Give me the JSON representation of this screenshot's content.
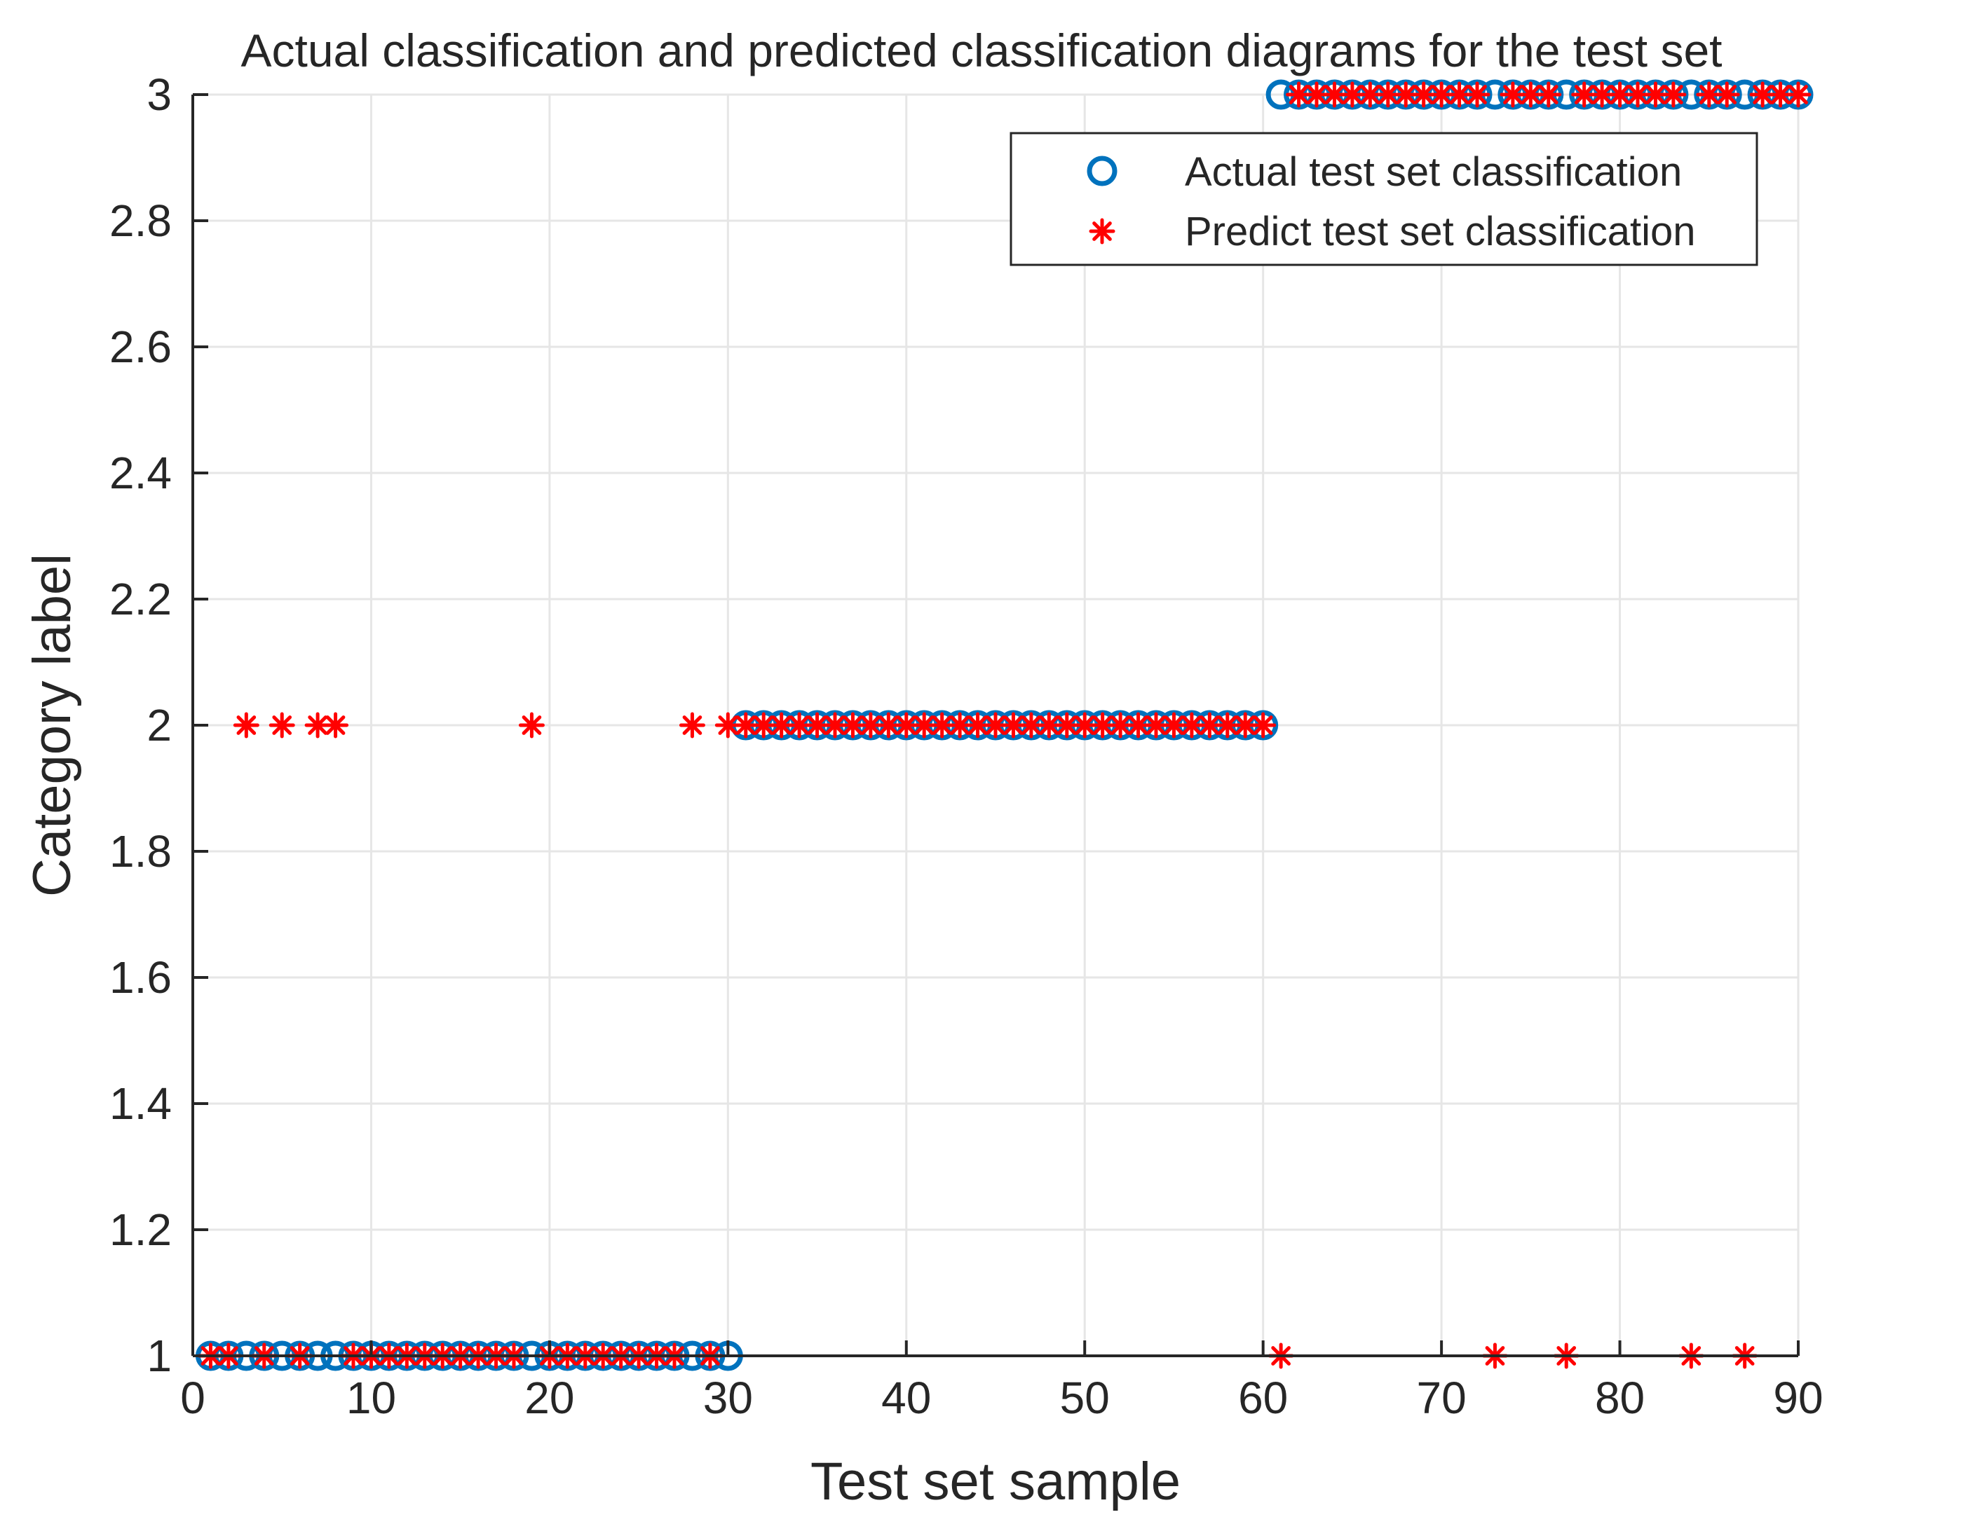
{
  "chart_data": {
    "type": "scatter",
    "title": "Actual classification and predicted classification diagrams for the test set",
    "xlabel": "Test set sample",
    "ylabel": "Category label",
    "xlim": [
      0,
      90
    ],
    "ylim": [
      1,
      3
    ],
    "xticks": [
      0,
      10,
      20,
      30,
      40,
      50,
      60,
      70,
      80,
      90
    ],
    "xtick_labels": [
      "0",
      "10",
      "20",
      "30",
      "40",
      "50",
      "60",
      "70",
      "80",
      "90"
    ],
    "yticks": [
      1,
      1.2,
      1.4,
      1.6,
      1.8,
      2,
      2.2,
      2.4,
      2.6,
      2.8,
      3
    ],
    "ytick_labels": [
      "1",
      "1.2",
      "1.4",
      "1.6",
      "1.8",
      "2",
      "2.2",
      "2.4",
      "2.6",
      "2.8",
      "3"
    ],
    "grid": true,
    "legend_position": "top-right",
    "series": [
      {
        "name": "Actual test set classification",
        "marker": "circle",
        "color": "#0072BD",
        "x": [
          1,
          2,
          3,
          4,
          5,
          6,
          7,
          8,
          9,
          10,
          11,
          12,
          13,
          14,
          15,
          16,
          17,
          18,
          19,
          20,
          21,
          22,
          23,
          24,
          25,
          26,
          27,
          28,
          29,
          30,
          31,
          32,
          33,
          34,
          35,
          36,
          37,
          38,
          39,
          40,
          41,
          42,
          43,
          44,
          45,
          46,
          47,
          48,
          49,
          50,
          51,
          52,
          53,
          54,
          55,
          56,
          57,
          58,
          59,
          60,
          61,
          62,
          63,
          64,
          65,
          66,
          67,
          68,
          69,
          70,
          71,
          72,
          73,
          74,
          75,
          76,
          77,
          78,
          79,
          80,
          81,
          82,
          83,
          84,
          85,
          86,
          87,
          88,
          89,
          90
        ],
        "y": [
          1,
          1,
          1,
          1,
          1,
          1,
          1,
          1,
          1,
          1,
          1,
          1,
          1,
          1,
          1,
          1,
          1,
          1,
          1,
          1,
          1,
          1,
          1,
          1,
          1,
          1,
          1,
          1,
          1,
          1,
          2,
          2,
          2,
          2,
          2,
          2,
          2,
          2,
          2,
          2,
          2,
          2,
          2,
          2,
          2,
          2,
          2,
          2,
          2,
          2,
          2,
          2,
          2,
          2,
          2,
          2,
          2,
          2,
          2,
          2,
          3,
          3,
          3,
          3,
          3,
          3,
          3,
          3,
          3,
          3,
          3,
          3,
          3,
          3,
          3,
          3,
          3,
          3,
          3,
          3,
          3,
          3,
          3,
          3,
          3,
          3,
          3,
          3,
          3,
          3
        ]
      },
      {
        "name": "Predict test set classification",
        "marker": "asterisk",
        "color": "#FF0000",
        "x": [
          1,
          2,
          3,
          4,
          5,
          6,
          7,
          8,
          9,
          10,
          11,
          12,
          13,
          14,
          15,
          16,
          17,
          18,
          19,
          20,
          21,
          22,
          23,
          24,
          25,
          26,
          27,
          28,
          29,
          30,
          31,
          32,
          33,
          34,
          35,
          36,
          37,
          38,
          39,
          40,
          41,
          42,
          43,
          44,
          45,
          46,
          47,
          48,
          49,
          50,
          51,
          52,
          53,
          54,
          55,
          56,
          57,
          58,
          59,
          60,
          61,
          62,
          63,
          64,
          65,
          66,
          67,
          68,
          69,
          70,
          71,
          72,
          73,
          74,
          75,
          76,
          77,
          78,
          79,
          80,
          81,
          82,
          83,
          84,
          85,
          86,
          87,
          88,
          89,
          90
        ],
        "y": [
          1,
          1,
          2,
          1,
          2,
          1,
          2,
          2,
          1,
          1,
          1,
          1,
          1,
          1,
          1,
          1,
          1,
          1,
          2,
          1,
          1,
          1,
          1,
          1,
          1,
          1,
          1,
          2,
          1,
          2,
          2,
          2,
          2,
          2,
          2,
          2,
          2,
          2,
          2,
          2,
          2,
          2,
          2,
          2,
          2,
          2,
          2,
          2,
          2,
          2,
          2,
          2,
          2,
          2,
          2,
          2,
          2,
          2,
          2,
          2,
          1,
          3,
          3,
          3,
          3,
          3,
          3,
          3,
          3,
          3,
          3,
          3,
          1,
          3,
          3,
          3,
          1,
          3,
          3,
          3,
          3,
          3,
          3,
          1,
          3,
          3,
          1,
          3,
          3,
          3
        ]
      }
    ]
  }
}
